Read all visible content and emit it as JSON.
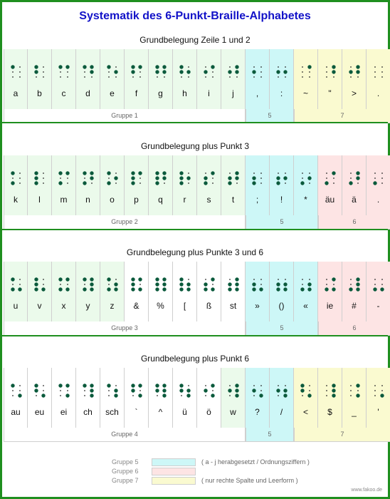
{
  "title": "Systematik des 6-Punkt-Braille-Alphabetes",
  "colors": {
    "frame": "#1f8f1f",
    "title": "#1212c8",
    "dot": "#0b5a3c",
    "group1": "#ebfaeb",
    "group5": "#cdf7f7",
    "group6": "#fde4e4",
    "group7": "#fafad0",
    "white": "#ffffff"
  },
  "sections": [
    {
      "title": "Grundbelegung Zeile 1 und 2",
      "cells": [
        {
          "label": "a",
          "dots": [
            1
          ],
          "bg": "group1"
        },
        {
          "label": "b",
          "dots": [
            1,
            2
          ],
          "bg": "group1"
        },
        {
          "label": "c",
          "dots": [
            1,
            4
          ],
          "bg": "group1"
        },
        {
          "label": "d",
          "dots": [
            1,
            4,
            5
          ],
          "bg": "group1"
        },
        {
          "label": "e",
          "dots": [
            1,
            5
          ],
          "bg": "group1"
        },
        {
          "label": "f",
          "dots": [
            1,
            2,
            4
          ],
          "bg": "group1"
        },
        {
          "label": "g",
          "dots": [
            1,
            2,
            4,
            5
          ],
          "bg": "group1"
        },
        {
          "label": "h",
          "dots": [
            1,
            2,
            5
          ],
          "bg": "group1"
        },
        {
          "label": "i",
          "dots": [
            2,
            4
          ],
          "bg": "group1"
        },
        {
          "label": "j",
          "dots": [
            2,
            4,
            5
          ],
          "bg": "group1"
        },
        {
          "label": ",",
          "dots": [
            2
          ],
          "bg": "group5"
        },
        {
          "label": ":",
          "dots": [
            2,
            5
          ],
          "bg": "group5"
        },
        {
          "label": "~",
          "dots": [
            4
          ],
          "bg": "group7"
        },
        {
          "label": "\"",
          "dots": [
            4,
            5
          ],
          "bg": "group7"
        },
        {
          "label": ">",
          "dots": [
            4,
            5,
            2
          ],
          "bg": "group7"
        },
        {
          "label": ".",
          "dots": [],
          "bg": "group7"
        }
      ],
      "groups": [
        {
          "label": "Gruppe 1",
          "span": 10,
          "bg": "white"
        },
        {
          "label": "5",
          "span": 2,
          "bg": "group5"
        },
        {
          "label": "7",
          "span": 4,
          "bg": "group7"
        }
      ]
    },
    {
      "title": "Grundbelegung plus Punkt 3",
      "cells": [
        {
          "label": "k",
          "dots": [
            1,
            3
          ],
          "bg": "group1"
        },
        {
          "label": "l",
          "dots": [
            1,
            2,
            3
          ],
          "bg": "group1"
        },
        {
          "label": "m",
          "dots": [
            1,
            3,
            4
          ],
          "bg": "group1"
        },
        {
          "label": "n",
          "dots": [
            1,
            3,
            4,
            5
          ],
          "bg": "group1"
        },
        {
          "label": "o",
          "dots": [
            1,
            3,
            5
          ],
          "bg": "group1"
        },
        {
          "label": "p",
          "dots": [
            1,
            2,
            3,
            4
          ],
          "bg": "group1"
        },
        {
          "label": "q",
          "dots": [
            1,
            2,
            3,
            4,
            5
          ],
          "bg": "group1"
        },
        {
          "label": "r",
          "dots": [
            1,
            2,
            3,
            5
          ],
          "bg": "group1"
        },
        {
          "label": "s",
          "dots": [
            2,
            3,
            4
          ],
          "bg": "group1"
        },
        {
          "label": "t",
          "dots": [
            2,
            3,
            4,
            5
          ],
          "bg": "group1"
        },
        {
          "label": ";",
          "dots": [
            2,
            3
          ],
          "bg": "group5"
        },
        {
          "label": "!",
          "dots": [
            2,
            3,
            5
          ],
          "bg": "group5"
        },
        {
          "label": "*",
          "dots": [
            3,
            5
          ],
          "bg": "group5"
        },
        {
          "label": "äu",
          "dots": [
            3,
            4
          ],
          "bg": "group6"
        },
        {
          "label": "ä",
          "dots": [
            3,
            4,
            5
          ],
          "bg": "group6"
        },
        {
          "label": ".",
          "dots": [
            3
          ],
          "bg": "group6"
        }
      ],
      "groups": [
        {
          "label": "Gruppe 2",
          "span": 10,
          "bg": "white"
        },
        {
          "label": "5",
          "span": 3,
          "bg": "group5"
        },
        {
          "label": "6",
          "span": 3,
          "bg": "group6"
        }
      ]
    },
    {
      "title": "Grundbelegung plus Punkte 3 und 6",
      "cells": [
        {
          "label": "u",
          "dots": [
            1,
            3,
            6
          ],
          "bg": "group1"
        },
        {
          "label": "v",
          "dots": [
            1,
            2,
            3,
            6
          ],
          "bg": "group1"
        },
        {
          "label": "x",
          "dots": [
            1,
            3,
            4,
            6
          ],
          "bg": "group1"
        },
        {
          "label": "y",
          "dots": [
            1,
            3,
            4,
            5,
            6
          ],
          "bg": "group1"
        },
        {
          "label": "z",
          "dots": [
            1,
            3,
            5,
            6
          ],
          "bg": "group1"
        },
        {
          "label": "&",
          "dots": [
            1,
            2,
            3,
            4,
            6
          ],
          "bg": "white"
        },
        {
          "label": "%",
          "dots": [
            1,
            2,
            3,
            4,
            5,
            6
          ],
          "bg": "white"
        },
        {
          "label": "[",
          "dots": [
            1,
            2,
            3,
            5,
            6
          ],
          "bg": "white"
        },
        {
          "label": "ß",
          "dots": [
            2,
            3,
            4,
            6
          ],
          "bg": "white"
        },
        {
          "label": "st",
          "dots": [
            2,
            3,
            4,
            5,
            6
          ],
          "bg": "white"
        },
        {
          "label": "»",
          "dots": [
            2,
            3,
            6
          ],
          "bg": "group5"
        },
        {
          "label": "()",
          "dots": [
            2,
            3,
            5,
            6
          ],
          "bg": "group5"
        },
        {
          "label": "«",
          "dots": [
            3,
            5,
            6
          ],
          "bg": "group5"
        },
        {
          "label": "ie",
          "dots": [
            3,
            4,
            6
          ],
          "bg": "group6"
        },
        {
          "label": "#",
          "dots": [
            3,
            4,
            5,
            6
          ],
          "bg": "group6"
        },
        {
          "label": "-",
          "dots": [
            3,
            6
          ],
          "bg": "group6"
        }
      ],
      "groups": [
        {
          "label": "Gruppe 3",
          "span": 10,
          "bg": "white"
        },
        {
          "label": "5",
          "span": 3,
          "bg": "group5"
        },
        {
          "label": "6",
          "span": 3,
          "bg": "group6"
        }
      ]
    },
    {
      "title": "Grundbelegung plus Punkt 6",
      "cells": [
        {
          "label": "au",
          "dots": [
            1,
            6
          ],
          "bg": "white"
        },
        {
          "label": "eu",
          "dots": [
            1,
            2,
            6
          ],
          "bg": "white"
        },
        {
          "label": "ei",
          "dots": [
            1,
            4,
            6
          ],
          "bg": "white"
        },
        {
          "label": "ch",
          "dots": [
            1,
            4,
            5,
            6
          ],
          "bg": "white"
        },
        {
          "label": "sch",
          "dots": [
            1,
            5,
            6
          ],
          "bg": "white"
        },
        {
          "label": "`",
          "dots": [
            1,
            2,
            4,
            6
          ],
          "bg": "white"
        },
        {
          "label": "^",
          "dots": [
            1,
            2,
            4,
            5,
            6
          ],
          "bg": "white"
        },
        {
          "label": "ü",
          "dots": [
            1,
            2,
            5,
            6
          ],
          "bg": "white"
        },
        {
          "label": "ö",
          "dots": [
            2,
            4,
            6
          ],
          "bg": "white"
        },
        {
          "label": "w",
          "dots": [
            2,
            4,
            5,
            6
          ],
          "bg": "group1"
        },
        {
          "label": "?",
          "dots": [
            2,
            6
          ],
          "bg": "group5"
        },
        {
          "label": "/",
          "dots": [
            2,
            5,
            6
          ],
          "bg": "group5"
        },
        {
          "label": "<",
          "dots": [
            1,
            2,
            6
          ],
          "bg": "group7"
        },
        {
          "label": "$",
          "dots": [
            4,
            5,
            6
          ],
          "bg": "group7"
        },
        {
          "label": "_",
          "dots": [
            4,
            6
          ],
          "bg": "group7"
        },
        {
          "label": "'",
          "dots": [
            6
          ],
          "bg": "group7"
        }
      ],
      "groups": [
        {
          "label": "Gruppe 4",
          "span": 10,
          "bg": "white"
        },
        {
          "label": "5",
          "span": 2,
          "bg": "group5"
        },
        {
          "label": "7",
          "span": 4,
          "bg": "group7"
        }
      ]
    }
  ],
  "legend": [
    {
      "name": "Gruppe 5",
      "bg": "group5",
      "desc": "( a - j herabgesetzt / Ordnungsziffern )"
    },
    {
      "name": "Gruppe 6",
      "bg": "group6",
      "desc": ""
    },
    {
      "name": "Gruppe 7",
      "bg": "group7",
      "desc": "( nur rechte Spalte und Leerform )"
    }
  ],
  "footer": "www.fakoo.de"
}
